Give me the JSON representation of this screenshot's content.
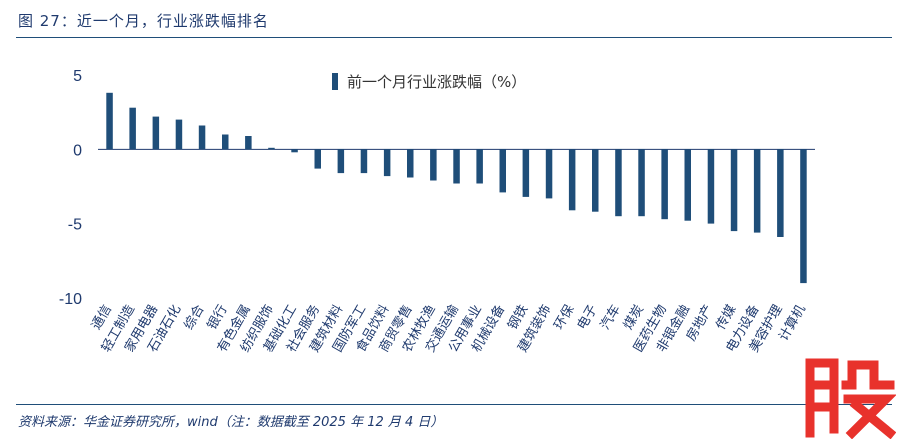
{
  "header": {
    "title": "图 27：近一个月，行业涨跌幅排名"
  },
  "footer": {
    "source": "资料来源：华金证券研究所，wind（注：数据截至 2025 年 12 月 4 日）"
  },
  "colors": {
    "bar": "#1f4e79",
    "text": "#1f3a6e",
    "rule": "#1f4e79",
    "stamp": "#e8322c"
  },
  "chart_data": {
    "type": "bar",
    "title": "",
    "legend": "前一个月行业涨跌幅（%）",
    "legend_position": "top-right",
    "ylim": [
      -10,
      5
    ],
    "yticks": [
      5,
      0,
      -5,
      -10
    ],
    "grid": false,
    "categories": [
      "通信",
      "轻工制造",
      "家用电器",
      "石油石化",
      "综合",
      "银行",
      "有色金属",
      "纺织服饰",
      "基础化工",
      "社会服务",
      "建筑材料",
      "国防军工",
      "食品饮料",
      "商贸零售",
      "农林牧渔",
      "交通运输",
      "公用事业",
      "机械设备",
      "钢铁",
      "建筑装饰",
      "环保",
      "电子",
      "汽车",
      "煤炭",
      "医药生物",
      "非银金融",
      "房地产",
      "传媒",
      "电力设备",
      "美容护理",
      "计算机"
    ],
    "values": [
      3.8,
      2.8,
      2.2,
      2.0,
      1.6,
      1.0,
      0.9,
      0.1,
      -0.2,
      -1.3,
      -1.6,
      -1.6,
      -1.8,
      -1.9,
      -2.1,
      -2.3,
      -2.3,
      -2.9,
      -3.2,
      -3.3,
      -4.1,
      -4.2,
      -4.5,
      -4.5,
      -4.7,
      -4.8,
      -5.0,
      -5.5,
      -5.6,
      -5.9,
      -9.0
    ]
  }
}
